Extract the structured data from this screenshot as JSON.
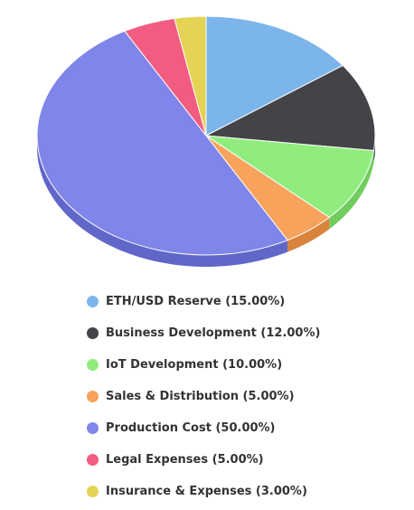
{
  "chart_data": {
    "type": "pie",
    "title": "",
    "legend_position": "bottom",
    "style": "3d",
    "slices": [
      {
        "name": "ETH/USD Reserve",
        "value": 15.0,
        "label": "ETH/USD Reserve (15.00%)",
        "color": "#7cb5ec",
        "side_color": "#5d96cc"
      },
      {
        "name": "Business Development",
        "value": 12.0,
        "label": "Business Development (12.00%)",
        "color": "#434348",
        "side_color": "#2a2a2e"
      },
      {
        "name": "IoT Development",
        "value": 10.0,
        "label": "IoT Development (10.00%)",
        "color": "#90ed7d",
        "side_color": "#70cc5d"
      },
      {
        "name": "Sales & Distribution",
        "value": 5.0,
        "label": "Sales & Distribution (5.00%)",
        "color": "#f7a35c",
        "side_color": "#d8843d"
      },
      {
        "name": "Production Cost",
        "value": 50.0,
        "label": "Production Cost (50.00%)",
        "color": "#8085e9",
        "side_color": "#6166c9"
      },
      {
        "name": "Legal Expenses",
        "value": 5.0,
        "label": "Legal Expenses (5.00%)",
        "color": "#f15c80",
        "side_color": "#d03d60"
      },
      {
        "name": "Insurance & Expenses",
        "value": 3.0,
        "label": "Insurance & Expenses (3.00%)",
        "color": "#e4d354",
        "side_color": "#c5b435"
      }
    ]
  }
}
